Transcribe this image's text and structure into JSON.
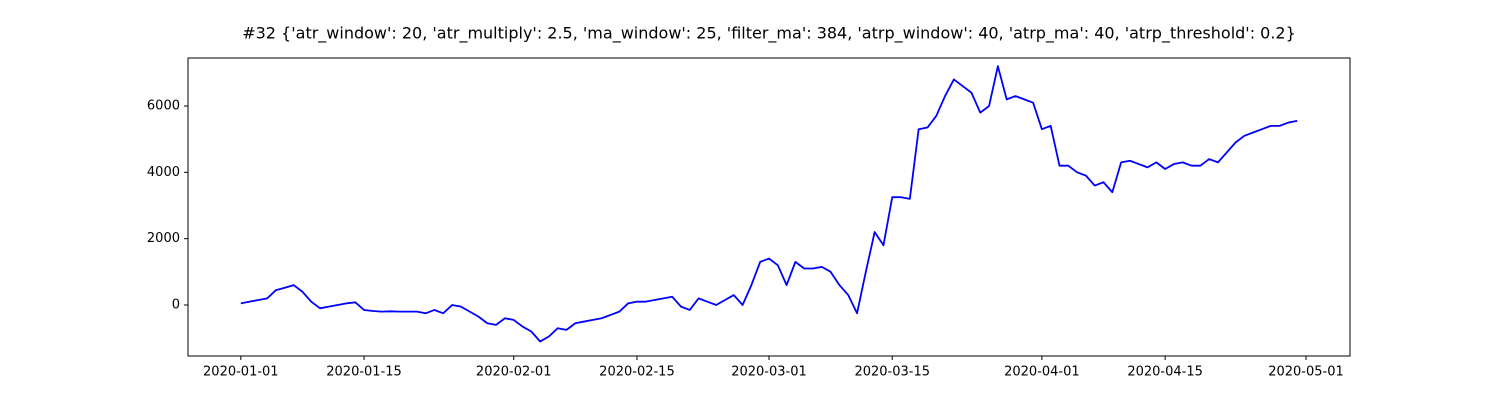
{
  "chart_data": {
    "type": "line",
    "title": "#32 {'atr_window': 20, 'atr_multiply': 2.5, 'ma_window': 25, 'filter_ma': 384, 'atrp_window': 40, 'atrp_ma': 40, 'atrp_threshold': 0.2}",
    "color": "#0000ff",
    "x": [
      "2020-01-01",
      "2020-01-02",
      "2020-01-03",
      "2020-01-04",
      "2020-01-05",
      "2020-01-06",
      "2020-01-07",
      "2020-01-08",
      "2020-01-09",
      "2020-01-10",
      "2020-01-11",
      "2020-01-12",
      "2020-01-13",
      "2020-01-14",
      "2020-01-15",
      "2020-01-16",
      "2020-01-17",
      "2020-01-18",
      "2020-01-19",
      "2020-01-20",
      "2020-01-21",
      "2020-01-22",
      "2020-01-23",
      "2020-01-24",
      "2020-01-25",
      "2020-01-26",
      "2020-01-27",
      "2020-01-28",
      "2020-01-29",
      "2020-01-30",
      "2020-01-31",
      "2020-02-01",
      "2020-02-02",
      "2020-02-03",
      "2020-02-04",
      "2020-02-05",
      "2020-02-06",
      "2020-02-07",
      "2020-02-08",
      "2020-02-09",
      "2020-02-10",
      "2020-02-11",
      "2020-02-12",
      "2020-02-13",
      "2020-02-14",
      "2020-02-15",
      "2020-02-16",
      "2020-02-17",
      "2020-02-18",
      "2020-02-19",
      "2020-02-20",
      "2020-02-21",
      "2020-02-22",
      "2020-02-23",
      "2020-02-24",
      "2020-02-25",
      "2020-02-26",
      "2020-02-27",
      "2020-02-28",
      "2020-02-29",
      "2020-03-01",
      "2020-03-02",
      "2020-03-03",
      "2020-03-04",
      "2020-03-05",
      "2020-03-06",
      "2020-03-07",
      "2020-03-08",
      "2020-03-09",
      "2020-03-10",
      "2020-03-11",
      "2020-03-12",
      "2020-03-13",
      "2020-03-14",
      "2020-03-15",
      "2020-03-16",
      "2020-03-17",
      "2020-03-18",
      "2020-03-19",
      "2020-03-20",
      "2020-03-21",
      "2020-03-22",
      "2020-03-23",
      "2020-03-24",
      "2020-03-25",
      "2020-03-26",
      "2020-03-27",
      "2020-03-28",
      "2020-03-29",
      "2020-03-30",
      "2020-03-31",
      "2020-04-01",
      "2020-04-02",
      "2020-04-03",
      "2020-04-04",
      "2020-04-05",
      "2020-04-06",
      "2020-04-07",
      "2020-04-08",
      "2020-04-09",
      "2020-04-10",
      "2020-04-11",
      "2020-04-12",
      "2020-04-13",
      "2020-04-14",
      "2020-04-15",
      "2020-04-16",
      "2020-04-17",
      "2020-04-18",
      "2020-04-19",
      "2020-04-20",
      "2020-04-21",
      "2020-04-22",
      "2020-04-23",
      "2020-04-24",
      "2020-04-25",
      "2020-04-26",
      "2020-04-27",
      "2020-04-28",
      "2020-04-29",
      "2020-04-30"
    ],
    "values": [
      50,
      100,
      150,
      200,
      450,
      520,
      600,
      400,
      100,
      -100,
      -50,
      0,
      50,
      80,
      -150,
      -180,
      -200,
      -190,
      -200,
      -200,
      -200,
      -250,
      -150,
      -250,
      0,
      -50,
      -200,
      -350,
      -550,
      -600,
      -400,
      -450,
      -650,
      -800,
      -1100,
      -950,
      -700,
      -750,
      -550,
      -500,
      -450,
      -400,
      -300,
      -200,
      50,
      100,
      100,
      150,
      200,
      250,
      -50,
      -150,
      200,
      100,
      0,
      150,
      300,
      0,
      600,
      1300,
      1400,
      1200,
      600,
      1300,
      1100,
      1100,
      1150,
      1000,
      600,
      300,
      -250,
      1000,
      2200,
      1800,
      3250,
      3250,
      3200,
      5300,
      5350,
      5700,
      6300,
      6800,
      6600,
      6400,
      5800,
      6000,
      7200,
      6200,
      6300,
      6200,
      6100,
      5300,
      5400,
      4200,
      4200,
      4000,
      3900,
      3600,
      3700,
      3400,
      4300,
      4350,
      4250,
      4150,
      4300,
      4100,
      4250,
      4300,
      4200,
      4200,
      4400,
      4300,
      4600,
      4900,
      5100,
      5200,
      5300,
      5400,
      5400,
      5500,
      5550
    ],
    "xlim": [
      "2019-12-26",
      "2020-05-06"
    ],
    "xticks": [
      "2020-01-01",
      "2020-01-15",
      "2020-02-01",
      "2020-02-15",
      "2020-03-01",
      "2020-03-15",
      "2020-04-01",
      "2020-04-15",
      "2020-05-01"
    ],
    "ylim": [
      -1538,
      7447
    ],
    "yticks": [
      0,
      2000,
      4000,
      6000
    ],
    "grid": false
  }
}
